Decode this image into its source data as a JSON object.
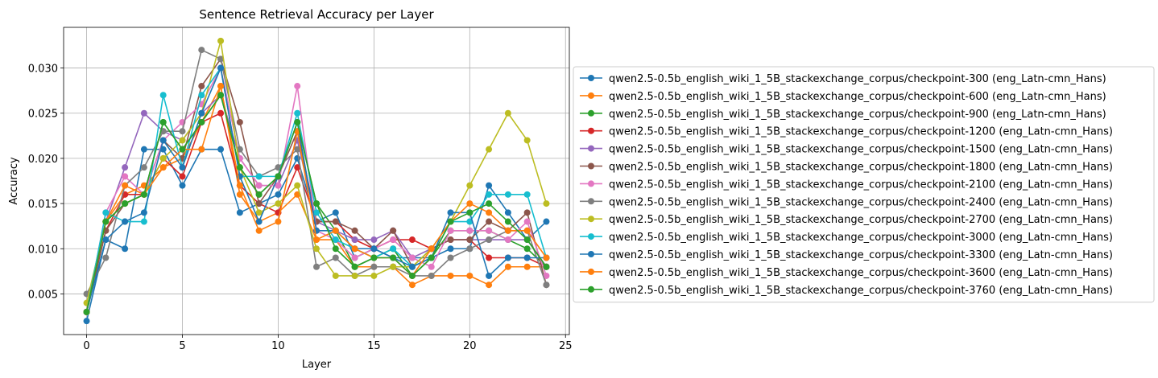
{
  "chart_data": {
    "type": "line",
    "title": "Sentence Retrieval Accuracy per Layer",
    "xlabel": "Layer",
    "ylabel": "Accuracy",
    "xlim": [
      -1.2,
      25.2
    ],
    "ylim": [
      0.0005,
      0.0345
    ],
    "xticks": [
      0,
      5,
      10,
      15,
      20,
      25
    ],
    "yticks": [
      0.005,
      0.01,
      0.015,
      0.02,
      0.025,
      0.03
    ],
    "ytick_labels": [
      "0.005",
      "0.010",
      "0.015",
      "0.020",
      "0.025",
      "0.030"
    ],
    "grid": true,
    "legend_position": "outside-right",
    "x": [
      0,
      1,
      2,
      3,
      4,
      5,
      6,
      7,
      8,
      9,
      10,
      11,
      12,
      13,
      14,
      15,
      16,
      17,
      18,
      19,
      20,
      21,
      22,
      23,
      24
    ],
    "series": [
      {
        "name": "qwen2.5-0.5b_english_wiki_1_5B_stackexchange_corpus/checkpoint-300 (eng_Latn-cmn_Hans)",
        "color": "#1f77b4",
        "values": [
          0.002,
          0.011,
          0.01,
          0.021,
          0.021,
          0.017,
          0.021,
          0.021,
          0.014,
          0.015,
          0.016,
          0.02,
          0.013,
          0.014,
          0.009,
          0.01,
          0.009,
          0.009,
          0.009,
          0.01,
          0.01,
          0.017,
          0.014,
          0.011,
          0.013
        ]
      },
      {
        "name": "qwen2.5-0.5b_english_wiki_1_5B_stackexchange_corpus/checkpoint-600 (eng_Latn-cmn_Hans)",
        "color": "#ff7f0e",
        "values": [
          0.003,
          0.013,
          0.016,
          0.017,
          0.019,
          0.02,
          0.024,
          0.028,
          0.016,
          0.013,
          0.014,
          0.016,
          0.011,
          0.011,
          0.008,
          0.008,
          0.008,
          0.006,
          0.007,
          0.007,
          0.007,
          0.006,
          0.008,
          0.008,
          0.008
        ]
      },
      {
        "name": "qwen2.5-0.5b_english_wiki_1_5B_stackexchange_corpus/checkpoint-900 (eng_Latn-cmn_Hans)",
        "color": "#2ca02c",
        "values": [
          0.003,
          0.013,
          0.015,
          0.016,
          0.024,
          0.021,
          0.024,
          0.027,
          0.019,
          0.016,
          0.018,
          0.024,
          0.015,
          0.012,
          0.008,
          0.009,
          0.01,
          0.007,
          0.009,
          0.012,
          0.012,
          0.012,
          0.011,
          0.01,
          0.008
        ]
      },
      {
        "name": "qwen2.5-0.5b_english_wiki_1_5B_stackexchange_corpus/checkpoint-1200 (eng_Latn-cmn_Hans)",
        "color": "#d62728",
        "values": [
          0.003,
          0.012,
          0.016,
          0.016,
          0.02,
          0.018,
          0.024,
          0.025,
          0.017,
          0.015,
          0.014,
          0.019,
          0.013,
          0.013,
          0.011,
          0.01,
          0.011,
          0.011,
          0.01,
          0.011,
          0.011,
          0.009,
          0.009,
          0.009,
          0.008
        ]
      },
      {
        "name": "qwen2.5-0.5b_english_wiki_1_5B_stackexchange_corpus/checkpoint-1500 (eng_Latn-cmn_Hans)",
        "color": "#9467bd",
        "values": [
          0.003,
          0.013,
          0.019,
          0.025,
          0.023,
          0.022,
          0.025,
          0.027,
          0.02,
          0.017,
          0.017,
          0.022,
          0.013,
          0.012,
          0.011,
          0.011,
          0.012,
          0.009,
          0.01,
          0.011,
          0.011,
          0.011,
          0.011,
          0.011,
          0.008
        ]
      },
      {
        "name": "qwen2.5-0.5b_english_wiki_1_5B_stackexchange_corpus/checkpoint-1800 (eng_Latn-cmn_Hans)",
        "color": "#8c564b",
        "values": [
          0.003,
          0.012,
          0.015,
          0.016,
          0.022,
          0.02,
          0.028,
          0.031,
          0.024,
          0.015,
          0.018,
          0.023,
          0.013,
          0.013,
          0.012,
          0.01,
          0.012,
          0.008,
          0.01,
          0.011,
          0.011,
          0.013,
          0.012,
          0.014,
          0.006
        ]
      },
      {
        "name": "qwen2.5-0.5b_english_wiki_1_5B_stackexchange_corpus/checkpoint-2100 (eng_Latn-cmn_Hans)",
        "color": "#e377c2",
        "values": [
          0.003,
          0.014,
          0.018,
          0.016,
          0.022,
          0.024,
          0.026,
          0.03,
          0.02,
          0.017,
          0.017,
          0.028,
          0.012,
          0.011,
          0.009,
          0.01,
          0.011,
          0.009,
          0.008,
          0.012,
          0.012,
          0.012,
          0.011,
          0.013,
          0.007
        ]
      },
      {
        "name": "qwen2.5-0.5b_english_wiki_1_5B_stackexchange_corpus/checkpoint-2400 (eng_Latn-cmn_Hans)",
        "color": "#7f7f7f",
        "values": [
          0.005,
          0.009,
          0.017,
          0.019,
          0.023,
          0.023,
          0.032,
          0.031,
          0.021,
          0.018,
          0.019,
          0.021,
          0.008,
          0.009,
          0.007,
          0.008,
          0.008,
          0.007,
          0.007,
          0.009,
          0.01,
          0.011,
          0.012,
          0.012,
          0.006
        ]
      },
      {
        "name": "qwen2.5-0.5b_english_wiki_1_5B_stackexchange_corpus/checkpoint-2700 (eng_Latn-cmn_Hans)",
        "color": "#bcbd22",
        "values": [
          0.004,
          0.013,
          0.015,
          0.016,
          0.02,
          0.022,
          0.025,
          0.033,
          0.019,
          0.014,
          0.015,
          0.017,
          0.01,
          0.007,
          0.007,
          0.007,
          0.008,
          0.008,
          0.01,
          0.013,
          0.017,
          0.021,
          0.025,
          0.022,
          0.015
        ]
      },
      {
        "name": "qwen2.5-0.5b_english_wiki_1_5B_stackexchange_corpus/checkpoint-3000 (eng_Latn-cmn_Hans)",
        "color": "#17becf",
        "values": [
          0.003,
          0.014,
          0.013,
          0.013,
          0.027,
          0.019,
          0.027,
          0.03,
          0.018,
          0.018,
          0.018,
          0.025,
          0.014,
          0.011,
          0.01,
          0.009,
          0.01,
          0.008,
          0.009,
          0.013,
          0.013,
          0.016,
          0.016,
          0.016,
          0.009
        ]
      },
      {
        "name": "qwen2.5-0.5b_english_wiki_1_5B_stackexchange_corpus/checkpoint-3300 (eng_Latn-cmn_Hans)",
        "color": "#1f77b4",
        "values": [
          0.003,
          0.011,
          0.013,
          0.014,
          0.022,
          0.019,
          0.025,
          0.03,
          0.018,
          0.013,
          0.018,
          0.024,
          0.012,
          0.012,
          0.01,
          0.01,
          0.009,
          0.008,
          0.009,
          0.014,
          0.014,
          0.007,
          0.009,
          0.009,
          0.009
        ]
      },
      {
        "name": "qwen2.5-0.5b_english_wiki_1_5B_stackexchange_corpus/checkpoint-3600 (eng_Latn-cmn_Hans)",
        "color": "#ff7f0e",
        "values": [
          0.003,
          0.013,
          0.017,
          0.016,
          0.019,
          0.021,
          0.021,
          0.028,
          0.017,
          0.012,
          0.013,
          0.023,
          0.011,
          0.012,
          0.01,
          0.009,
          0.009,
          0.007,
          0.01,
          0.013,
          0.015,
          0.014,
          0.012,
          0.012,
          0.009
        ]
      },
      {
        "name": "qwen2.5-0.5b_english_wiki_1_5B_stackexchange_corpus/checkpoint-3760 (eng_Latn-cmn_Hans)",
        "color": "#2ca02c",
        "values": [
          0.003,
          0.013,
          0.015,
          0.016,
          0.024,
          0.021,
          0.024,
          0.027,
          0.019,
          0.016,
          0.018,
          0.024,
          0.015,
          0.01,
          0.008,
          0.009,
          0.009,
          0.007,
          0.009,
          0.013,
          0.014,
          0.015,
          0.013,
          0.011,
          0.008
        ]
      }
    ]
  }
}
